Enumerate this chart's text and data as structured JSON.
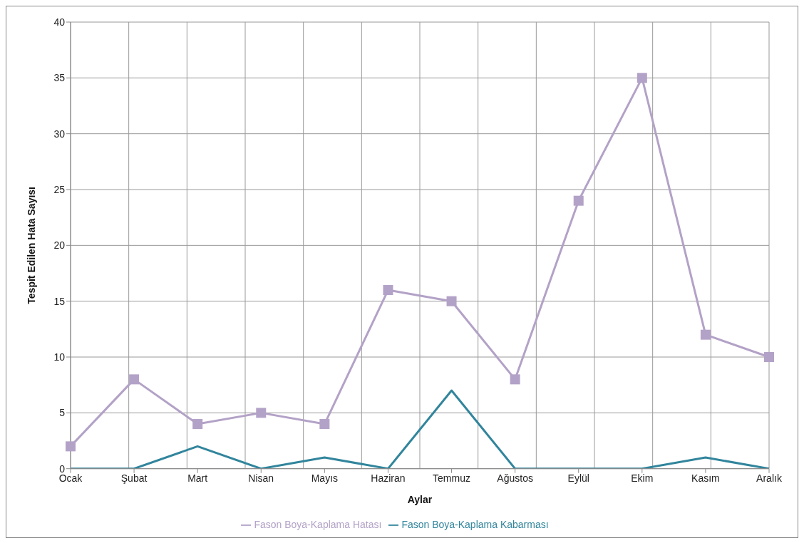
{
  "chart_data": {
    "type": "line",
    "xlabel": "Aylar",
    "ylabel": "Tespit Edilen Hata Sayısı",
    "categories": [
      "Ocak",
      "Şubat",
      "Mart",
      "Nisan",
      "Mayıs",
      "Haziran",
      "Temmuz",
      "Ağustos",
      "Eylül",
      "Ekim",
      "Kasım",
      "Aralık"
    ],
    "series": [
      {
        "name": "Fason Boya-Kaplama Hatası",
        "color": "#b3a2c7",
        "marker": "square",
        "values": [
          2,
          8,
          4,
          5,
          4,
          16,
          15,
          8,
          24,
          35,
          12,
          10
        ]
      },
      {
        "name": "Fason Boya-Kaplama Kabarması",
        "color": "#31859c",
        "marker": "none",
        "values": [
          0,
          0,
          2,
          0,
          1,
          0,
          7,
          0,
          0,
          0,
          1,
          0
        ]
      }
    ],
    "ylim": [
      0,
      40
    ],
    "yticks": [
      0,
      5,
      10,
      15,
      20,
      25,
      30,
      35,
      40
    ],
    "grid": true,
    "legend": "bottom"
  }
}
